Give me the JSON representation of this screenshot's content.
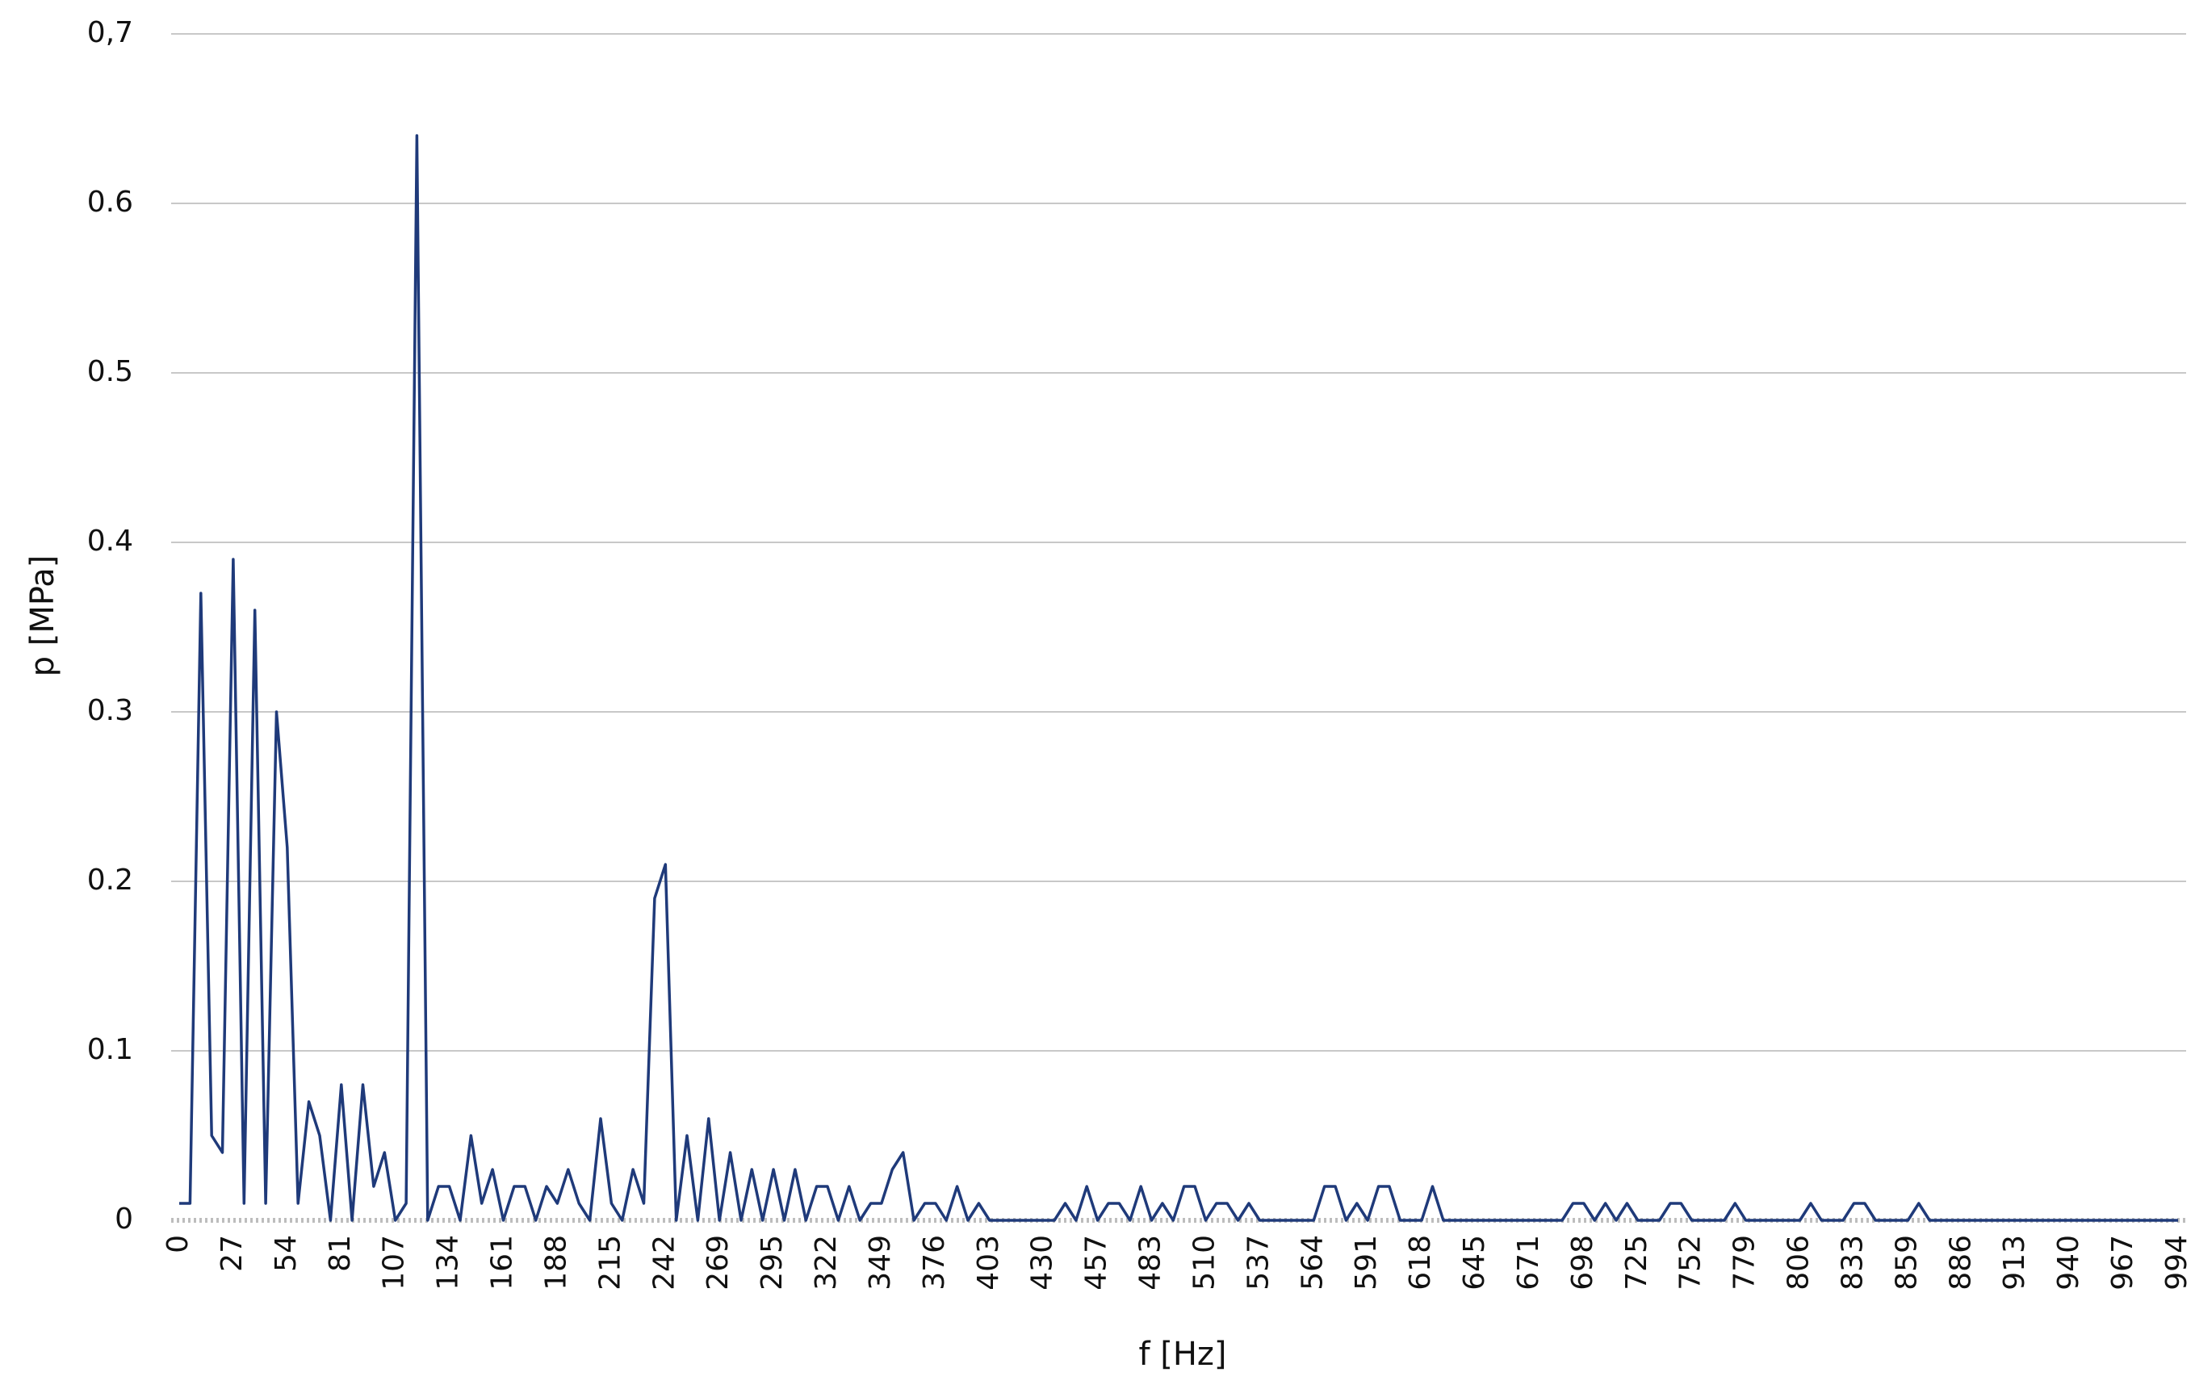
{
  "chart_data": {
    "type": "line",
    "xlabel": "f [Hz]",
    "ylabel": "p [MPa]",
    "categories": [
      "0",
      null,
      null,
      null,
      null,
      "27",
      null,
      null,
      null,
      null,
      "54",
      null,
      null,
      null,
      null,
      "81",
      null,
      null,
      null,
      null,
      "107",
      null,
      null,
      null,
      null,
      "134",
      null,
      null,
      null,
      null,
      "161",
      null,
      null,
      null,
      null,
      "188",
      null,
      null,
      null,
      null,
      "215",
      null,
      null,
      null,
      null,
      "242",
      null,
      null,
      null,
      null,
      "269",
      null,
      null,
      null,
      null,
      "295",
      null,
      null,
      null,
      null,
      "322",
      null,
      null,
      null,
      null,
      "349",
      null,
      null,
      null,
      null,
      "376",
      null,
      null,
      null,
      null,
      "403",
      null,
      null,
      null,
      null,
      "430",
      null,
      null,
      null,
      null,
      "457",
      null,
      null,
      null,
      null,
      "483",
      null,
      null,
      null,
      null,
      "510",
      null,
      null,
      null,
      null,
      "537",
      null,
      null,
      null,
      null,
      "564",
      null,
      null,
      null,
      null,
      "591",
      null,
      null,
      null,
      null,
      "618",
      null,
      null,
      null,
      null,
      "645",
      null,
      null,
      null,
      null,
      "671",
      null,
      null,
      null,
      null,
      "698",
      null,
      null,
      null,
      null,
      "725",
      null,
      null,
      null,
      null,
      "752",
      null,
      null,
      null,
      null,
      "779",
      null,
      null,
      null,
      null,
      "806",
      null,
      null,
      null,
      null,
      "833",
      null,
      null,
      null,
      null,
      "859",
      null,
      null,
      null,
      null,
      "886",
      null,
      null,
      null,
      null,
      "913",
      null,
      null,
      null,
      null,
      "940",
      null,
      null,
      null,
      null,
      "967",
      null,
      null,
      null,
      null,
      "994"
    ],
    "values": [
      0.01,
      0.01,
      0.37,
      0.05,
      0.04,
      0.39,
      0.01,
      0.36,
      0.01,
      0.3,
      0.22,
      0.01,
      0.07,
      0.05,
      0,
      0.08,
      0,
      0.08,
      0.02,
      0.04,
      0,
      0.01,
      0.64,
      0,
      0.02,
      0.02,
      0,
      0.05,
      0.01,
      0.03,
      0,
      0.02,
      0.02,
      0,
      0.02,
      0.01,
      0.03,
      0.01,
      0,
      0.06,
      0.01,
      0,
      0.03,
      0.01,
      0.19,
      0.21,
      0,
      0.05,
      0,
      0.06,
      0,
      0.04,
      0,
      0.03,
      0,
      0.03,
      0,
      0.03,
      0,
      0.02,
      0.02,
      0,
      0.02,
      0,
      0.01,
      0.01,
      0.03,
      0.04,
      0,
      0.01,
      0.01,
      0,
      0.02,
      0,
      0.01,
      0,
      0,
      0,
      0,
      0,
      0,
      0,
      0.01,
      0,
      0.02,
      0,
      0.01,
      0.01,
      0,
      0.02,
      0,
      0.01,
      0,
      0.02,
      0.02,
      0,
      0.01,
      0.01,
      0,
      0.01,
      0,
      0,
      0,
      0,
      0,
      0,
      0.02,
      0.02,
      0,
      0.01,
      0,
      0.02,
      0.02,
      0,
      0,
      0,
      0.02,
      0,
      0,
      0,
      0,
      0,
      0,
      0,
      0,
      0,
      0,
      0,
      0,
      0.01,
      0.01,
      0,
      0.01,
      0,
      0.01,
      0,
      0,
      0,
      0.01,
      0.01,
      0,
      0,
      0,
      0,
      0.01,
      0,
      0,
      0,
      0,
      0,
      0,
      0.01,
      0,
      0,
      0,
      0.01,
      0.01,
      0,
      0,
      0,
      0,
      0.01,
      0,
      0,
      0,
      0,
      0,
      0,
      0,
      0,
      0,
      0,
      0,
      0,
      0,
      0,
      0,
      0,
      0,
      0,
      0,
      0,
      0,
      0,
      0,
      0
    ],
    "color": "#1f3a7a",
    "ylim": [
      0,
      0.7
    ],
    "yticks": [
      0,
      0.1,
      0.2,
      0.3,
      0.4,
      0.5,
      0.6,
      {
        "value": 0.7,
        "label": "0,7"
      }
    ],
    "grid": true
  }
}
